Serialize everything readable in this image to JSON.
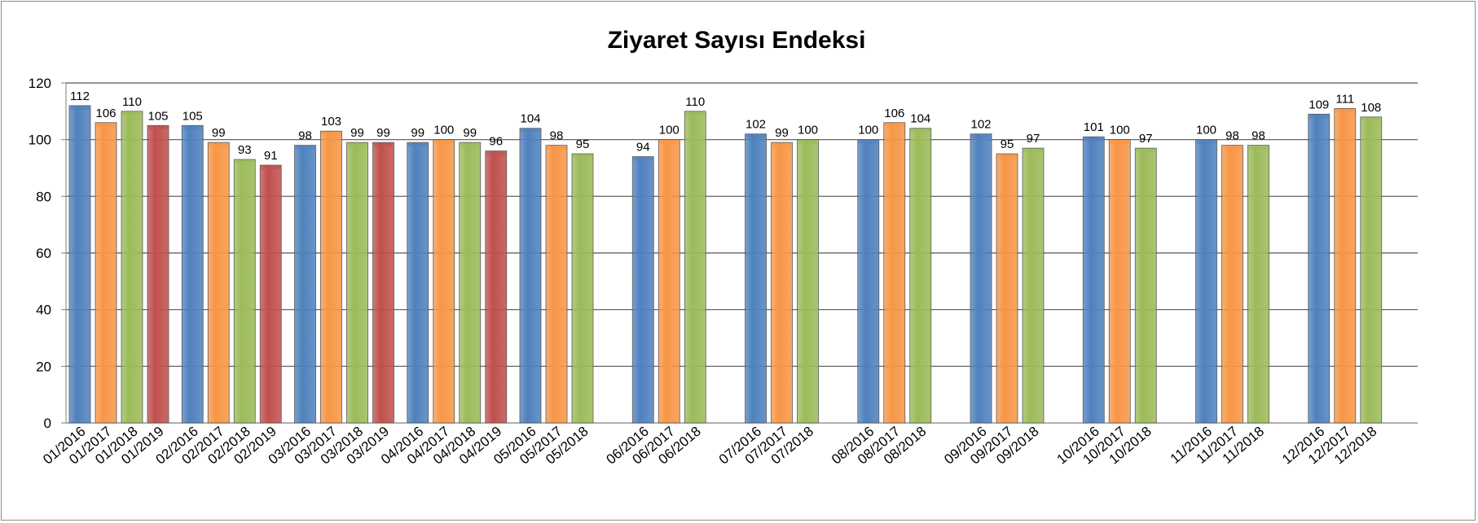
{
  "chart_data": {
    "type": "bar",
    "title": "Ziyaret Sayısı Endeksi",
    "xlabel": "",
    "ylabel": "",
    "ylim": [
      0,
      120
    ],
    "yticks": [
      0,
      20,
      40,
      60,
      80,
      100,
      120
    ],
    "grid": true,
    "legend": "none",
    "colors": {
      "2016": "#4f81bd",
      "2017": "#f79646",
      "2018": "#9bbb59",
      "2019": "#c0504d"
    },
    "groups": [
      {
        "bars": [
          {
            "label": "01/2016",
            "year": "2016",
            "value": 112
          },
          {
            "label": "01/2017",
            "year": "2017",
            "value": 106
          },
          {
            "label": "01/2018",
            "year": "2018",
            "value": 110
          },
          {
            "label": "01/2019",
            "year": "2019",
            "value": 105
          }
        ]
      },
      {
        "bars": [
          {
            "label": "02/2016",
            "year": "2016",
            "value": 105
          },
          {
            "label": "02/2017",
            "year": "2017",
            "value": 99
          },
          {
            "label": "02/2018",
            "year": "2018",
            "value": 93
          },
          {
            "label": "02/2019",
            "year": "2019",
            "value": 91
          }
        ]
      },
      {
        "bars": [
          {
            "label": "03/2016",
            "year": "2016",
            "value": 98
          },
          {
            "label": "03/2017",
            "year": "2017",
            "value": 103
          },
          {
            "label": "03/2018",
            "year": "2018",
            "value": 99
          },
          {
            "label": "03/2019",
            "year": "2019",
            "value": 99
          }
        ]
      },
      {
        "bars": [
          {
            "label": "04/2016",
            "year": "2016",
            "value": 99
          },
          {
            "label": "04/2017",
            "year": "2017",
            "value": 100
          },
          {
            "label": "04/2018",
            "year": "2018",
            "value": 99
          },
          {
            "label": "04/2019",
            "year": "2019",
            "value": 96
          }
        ]
      },
      {
        "bars": [
          {
            "label": "05/2016",
            "year": "2016",
            "value": 104
          },
          {
            "label": "05/2017",
            "year": "2017",
            "value": 98
          },
          {
            "label": "05/2018",
            "year": "2018",
            "value": 95
          }
        ]
      },
      {
        "bars": [
          {
            "label": "06/2016",
            "year": "2016",
            "value": 94
          },
          {
            "label": "06/2017",
            "year": "2017",
            "value": 100
          },
          {
            "label": "06/2018",
            "year": "2018",
            "value": 110
          }
        ]
      },
      {
        "bars": [
          {
            "label": "07/2016",
            "year": "2016",
            "value": 102
          },
          {
            "label": "07/2017",
            "year": "2017",
            "value": 99
          },
          {
            "label": "07/2018",
            "year": "2018",
            "value": 100
          }
        ]
      },
      {
        "bars": [
          {
            "label": "08/2016",
            "year": "2016",
            "value": 100
          },
          {
            "label": "08/2017",
            "year": "2017",
            "value": 106
          },
          {
            "label": "08/2018",
            "year": "2018",
            "value": 104
          }
        ]
      },
      {
        "bars": [
          {
            "label": "09/2016",
            "year": "2016",
            "value": 102
          },
          {
            "label": "09/2017",
            "year": "2017",
            "value": 95
          },
          {
            "label": "09/2018",
            "year": "2018",
            "value": 97
          }
        ]
      },
      {
        "bars": [
          {
            "label": "10/2016",
            "year": "2016",
            "value": 101
          },
          {
            "label": "10/2017",
            "year": "2017",
            "value": 100
          },
          {
            "label": "10/2018",
            "year": "2018",
            "value": 97
          }
        ]
      },
      {
        "bars": [
          {
            "label": "11/2016",
            "year": "2016",
            "value": 100
          },
          {
            "label": "11/2017",
            "year": "2017",
            "value": 98
          },
          {
            "label": "11/2018",
            "year": "2018",
            "value": 98
          }
        ]
      },
      {
        "bars": [
          {
            "label": "12/2016",
            "year": "2016",
            "value": 109
          },
          {
            "label": "12/2017",
            "year": "2017",
            "value": 111
          },
          {
            "label": "12/2018",
            "year": "2018",
            "value": 108
          }
        ]
      }
    ]
  }
}
